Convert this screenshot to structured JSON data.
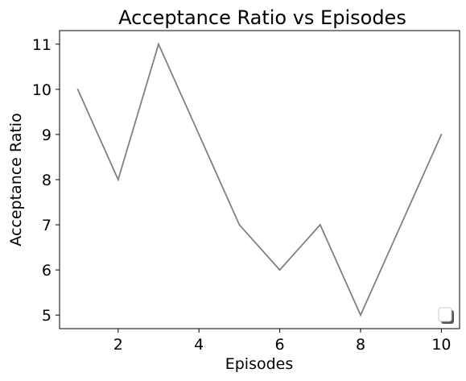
{
  "chart_data": {
    "type": "line",
    "title": "Acceptance Ratio vs Episodes",
    "xlabel": "Episodes",
    "ylabel": "Acceptance Ratio",
    "x": [
      1,
      2,
      3,
      4,
      5,
      6,
      7,
      8,
      9,
      10
    ],
    "series": [
      {
        "values": [
          10,
          8,
          11,
          9,
          7,
          6,
          7,
          5,
          7,
          9
        ],
        "color": "#808080"
      }
    ],
    "xlim": [
      0.55,
      10.45
    ],
    "ylim": [
      4.7,
      11.3
    ],
    "xticks": [
      2,
      4,
      6,
      8,
      10
    ],
    "yticks": [
      5,
      6,
      7,
      8,
      9,
      10,
      11
    ],
    "grid": false,
    "legend": "lower-right, empty"
  }
}
